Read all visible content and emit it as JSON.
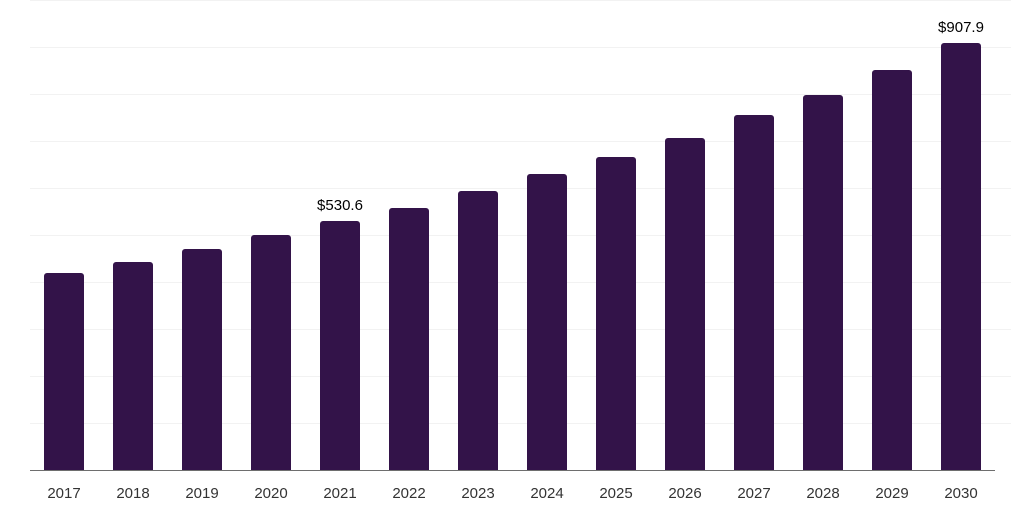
{
  "chart_data": {
    "type": "bar",
    "title": "",
    "xlabel": "",
    "ylabel": "",
    "categories": [
      "2017",
      "2018",
      "2019",
      "2020",
      "2021",
      "2022",
      "2023",
      "2024",
      "2025",
      "2026",
      "2027",
      "2028",
      "2029",
      "2030"
    ],
    "values": [
      420,
      443,
      470,
      501,
      530.6,
      558,
      593,
      630,
      666,
      707,
      755,
      799,
      851,
      907.9
    ],
    "value_labels": [
      "",
      "",
      "",
      "",
      "$530.6",
      "",
      "",
      "",
      "",
      "",
      "",
      "",
      "",
      "$907.9"
    ],
    "ylim": [
      0,
      1000
    ],
    "gridline_step": 100,
    "grid": "horizontal",
    "legend": "none",
    "colors": {
      "bar": "#331349",
      "gridline": "#f2f2f2",
      "axis_line": "#6e6e6e",
      "value_label": "#000000",
      "tick_label": "#333333",
      "background": "#ffffff"
    }
  }
}
